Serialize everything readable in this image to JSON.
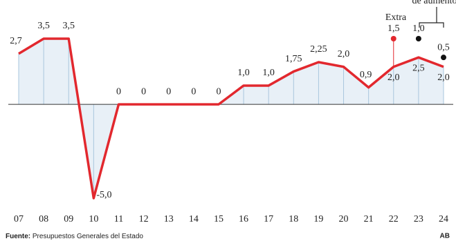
{
  "chart_data": {
    "type": "line",
    "categories": [
      "07",
      "08",
      "09",
      "10",
      "11",
      "12",
      "13",
      "14",
      "15",
      "16",
      "17",
      "18",
      "19",
      "20",
      "21",
      "22",
      "23",
      "24"
    ],
    "values": [
      2.7,
      3.5,
      3.5,
      -5.0,
      0,
      0,
      0,
      0,
      0,
      1.0,
      1.0,
      1.75,
      2.25,
      2.0,
      0.9,
      2.0,
      2.5,
      2.0
    ],
    "value_labels": [
      "2,7",
      "3,5",
      "3,5",
      "-5,0",
      "0",
      "0",
      "0",
      "0",
      "0",
      "1,0",
      "1,0",
      "1,75",
      "2,25",
      "2,0",
      "0,9",
      "2,0",
      "2,5",
      "2,0"
    ],
    "color": "#e2282e",
    "fill": "#e8f0f7",
    "extra": {
      "label": "Extra",
      "color": "#e2282e",
      "values": [
        null,
        null,
        null,
        null,
        null,
        null,
        null,
        null,
        null,
        null,
        null,
        null,
        null,
        null,
        null,
        1.5,
        null,
        null
      ],
      "value_labels": [
        null,
        null,
        null,
        null,
        null,
        null,
        null,
        null,
        null,
        null,
        null,
        null,
        null,
        null,
        null,
        "1,5",
        null,
        null
      ]
    },
    "proposal": {
      "label": "de aumento",
      "color": "#111111",
      "values": [
        null,
        null,
        null,
        null,
        null,
        null,
        null,
        null,
        null,
        null,
        null,
        null,
        null,
        null,
        null,
        null,
        1.0,
        0.5
      ],
      "value_labels": [
        null,
        null,
        null,
        null,
        null,
        null,
        null,
        null,
        null,
        null,
        null,
        null,
        null,
        null,
        null,
        null,
        "1,0",
        "0,5"
      ]
    },
    "ylim": [
      -5.0,
      3.5
    ],
    "source_label": "Fuente:",
    "source": "Presupuestos Generales del Estado",
    "credit": "AB"
  }
}
